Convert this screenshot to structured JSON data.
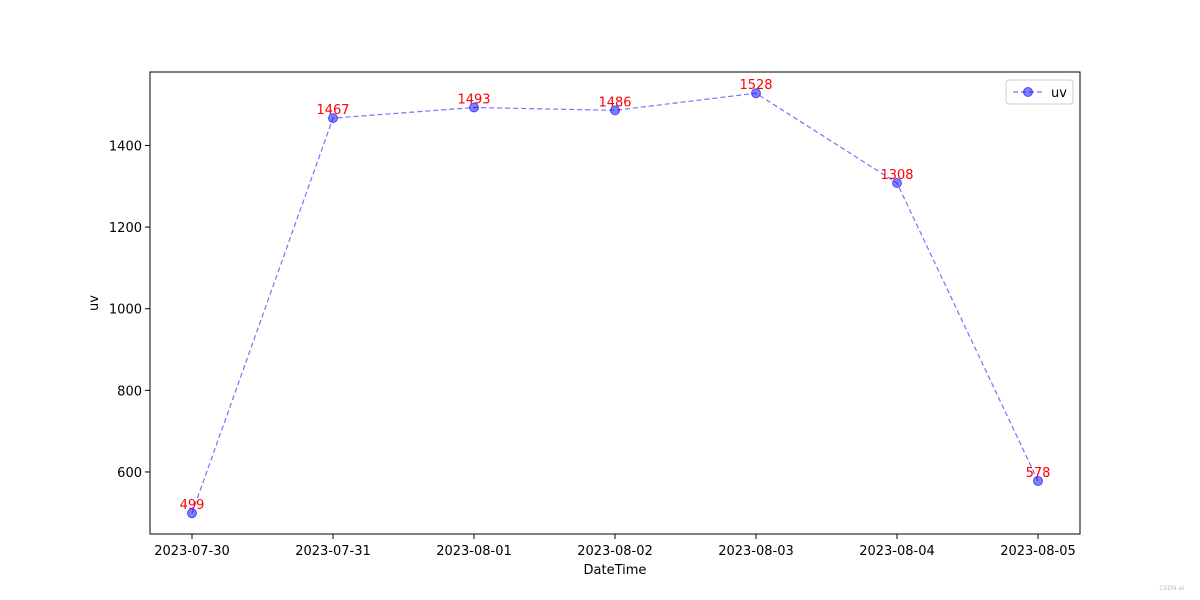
{
  "chart_data": {
    "type": "line",
    "title": "",
    "xlabel": "DateTime",
    "ylabel": "uv",
    "x": [
      "2023-07-30",
      "2023-07-31",
      "2023-08-01",
      "2023-08-02",
      "2023-08-03",
      "2023-08-04",
      "2023-08-05"
    ],
    "series": [
      {
        "name": "uv",
        "values": [
          499,
          1467,
          1493,
          1486,
          1528,
          1308,
          578
        ]
      }
    ],
    "ylim": [
      448,
      1580
    ],
    "yticks": [
      600,
      800,
      1000,
      1200,
      1400
    ],
    "grid": false,
    "legend": "top-right",
    "line_style": "dashed",
    "marker": "circle",
    "colors": {
      "line": "#0000ff",
      "data_label": "#ff0000"
    }
  },
  "watermark": "CSDN-ai"
}
